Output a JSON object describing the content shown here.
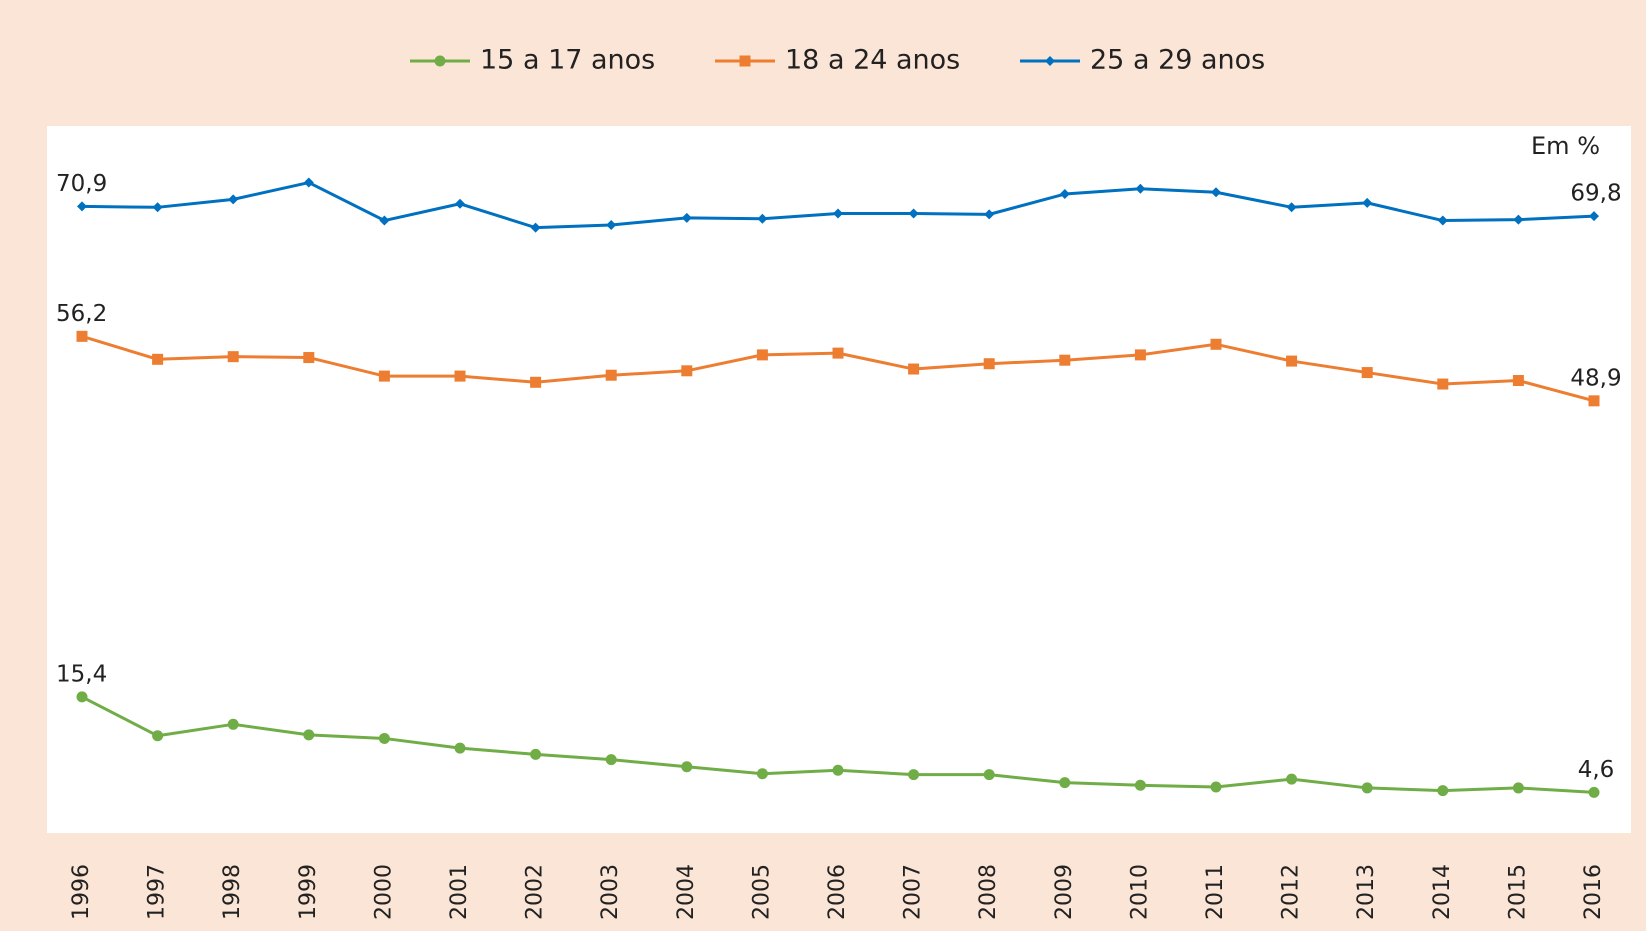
{
  "chart_data": {
    "type": "line",
    "annotation": "Em %",
    "categories": [
      "1996",
      "1997",
      "1998",
      "1999",
      "2000",
      "2001",
      "2002",
      "2003",
      "2004",
      "2005",
      "2006",
      "2007",
      "2008",
      "2009",
      "2010",
      "2011",
      "2012",
      "2013",
      "2014",
      "2015",
      "2016"
    ],
    "series": [
      {
        "name": "15 a 17 anos",
        "color": "#70ad47",
        "marker": "circle",
        "values": [
          15.4,
          11.0,
          12.3,
          11.1,
          10.7,
          9.6,
          8.9,
          8.3,
          7.5,
          6.7,
          7.1,
          6.6,
          6.6,
          5.7,
          5.4,
          5.2,
          6.1,
          5.1,
          4.8,
          5.1,
          4.6
        ],
        "value_labels": [
          "15,4",
          null,
          null,
          null,
          null,
          null,
          null,
          null,
          null,
          null,
          null,
          null,
          null,
          null,
          null,
          null,
          null,
          null,
          null,
          null,
          "4,6"
        ]
      },
      {
        "name": "18 a 24 anos",
        "color": "#ed7d31",
        "marker": "square",
        "values": [
          56.2,
          53.6,
          53.9,
          53.8,
          51.7,
          51.7,
          51.0,
          51.8,
          52.3,
          54.1,
          54.3,
          52.5,
          53.1,
          53.5,
          54.1,
          55.3,
          53.4,
          52.1,
          50.8,
          51.2,
          48.9
        ],
        "value_labels": [
          "56,2",
          null,
          null,
          null,
          null,
          null,
          null,
          null,
          null,
          null,
          null,
          null,
          null,
          null,
          null,
          null,
          null,
          null,
          null,
          null,
          "48,9"
        ]
      },
      {
        "name": "25 a 29 anos",
        "color": "#0070c0",
        "marker": "diamond",
        "values": [
          70.9,
          70.8,
          71.7,
          73.6,
          69.3,
          71.2,
          68.5,
          68.8,
          69.6,
          69.5,
          70.1,
          70.1,
          70.0,
          72.3,
          72.9,
          72.5,
          70.8,
          71.3,
          69.3,
          69.4,
          69.8
        ],
        "value_labels": [
          "70,9",
          null,
          null,
          null,
          null,
          null,
          null,
          null,
          null,
          null,
          null,
          null,
          null,
          null,
          null,
          null,
          null,
          null,
          null,
          null,
          "69,8"
        ]
      }
    ],
    "ylim": [
      0,
      80
    ]
  }
}
